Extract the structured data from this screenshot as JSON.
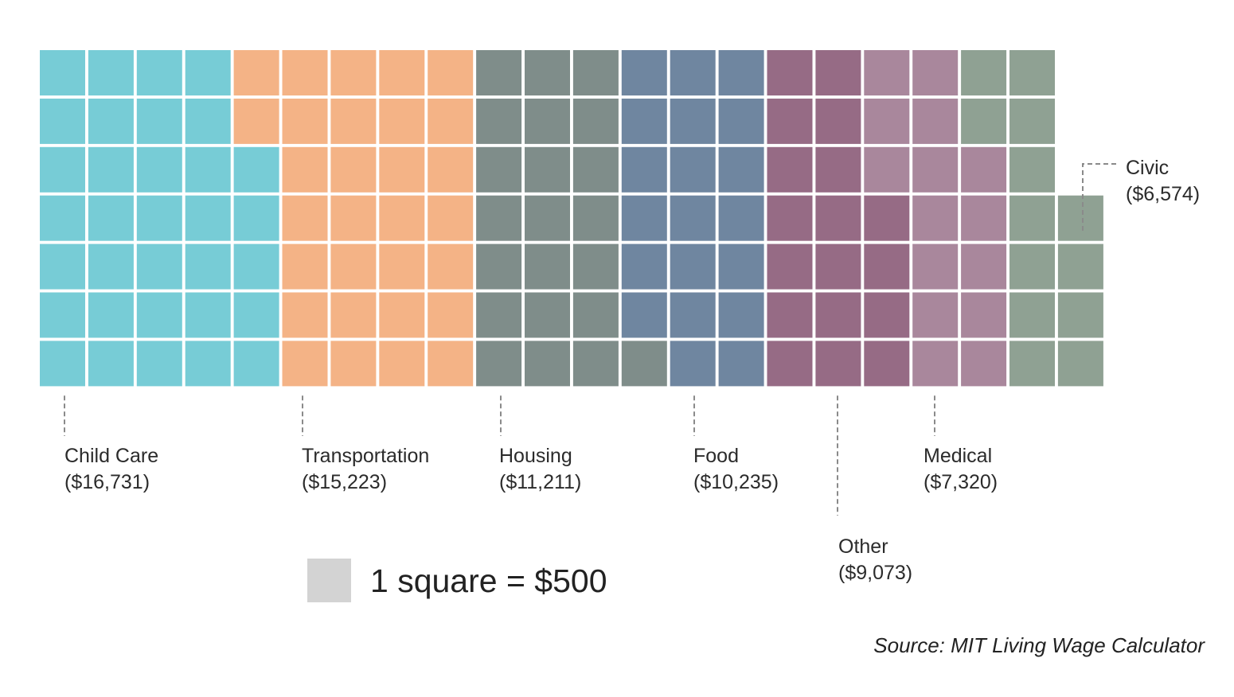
{
  "chart_data": {
    "type": "waffle",
    "unit_label": "1 square = $500",
    "unit_value": 500,
    "legend_color": "#d3d3d3",
    "categories": [
      {
        "name": "Child Care",
        "value_label": "($16,731)",
        "value": 16731,
        "squares": 33,
        "color": "#77ccd6"
      },
      {
        "name": "Transportation",
        "value_label": "($15,223)",
        "value": 15223,
        "squares": 30,
        "color": "#f4b386"
      },
      {
        "name": "Housing",
        "value_label": "($11,211)",
        "value": 11211,
        "squares": 22,
        "color": "#7f8d8a"
      },
      {
        "name": "Food",
        "value_label": "($10,235)",
        "value": 10235,
        "squares": 20,
        "color": "#6f86a0"
      },
      {
        "name": "Other",
        "value_label": "($9,073)",
        "value": 9073,
        "squares": 18,
        "color": "#966b85"
      },
      {
        "name": "Medical",
        "value_label": "($7,320)",
        "value": 7320,
        "squares": 15,
        "color": "#a9879c"
      },
      {
        "name": "Civic",
        "value_label": "($6,574)",
        "value": 6574,
        "squares": 13,
        "color": "#8fa193"
      }
    ],
    "source": "Source: MIT Living Wage Calculator"
  }
}
